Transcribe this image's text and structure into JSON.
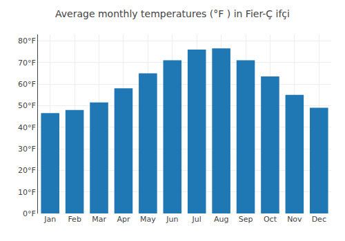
{
  "chart_data": {
    "type": "bar",
    "title": "Average monthly temperatures (°F ) in Fier-Ç ifçi",
    "categories": [
      "Jan",
      "Feb",
      "Mar",
      "Apr",
      "May",
      "Jun",
      "Jul",
      "Aug",
      "Sep",
      "Oct",
      "Nov",
      "Dec"
    ],
    "values": [
      46.5,
      48.0,
      51.5,
      58.0,
      65.0,
      71.0,
      76.0,
      76.5,
      71.0,
      63.5,
      55.0,
      49.0
    ],
    "ylim": [
      0,
      83
    ],
    "yticks": [
      {
        "value": 0,
        "label": "0°F"
      },
      {
        "value": 10,
        "label": "10°F"
      },
      {
        "value": 20,
        "label": "20°F"
      },
      {
        "value": 30,
        "label": "30°F"
      },
      {
        "value": 40,
        "label": "40°F"
      },
      {
        "value": 50,
        "label": "50°F"
      },
      {
        "value": 60,
        "label": "60°F"
      },
      {
        "value": 70,
        "label": "70°F"
      },
      {
        "value": 80,
        "label": "80°F"
      }
    ],
    "grid": true
  }
}
